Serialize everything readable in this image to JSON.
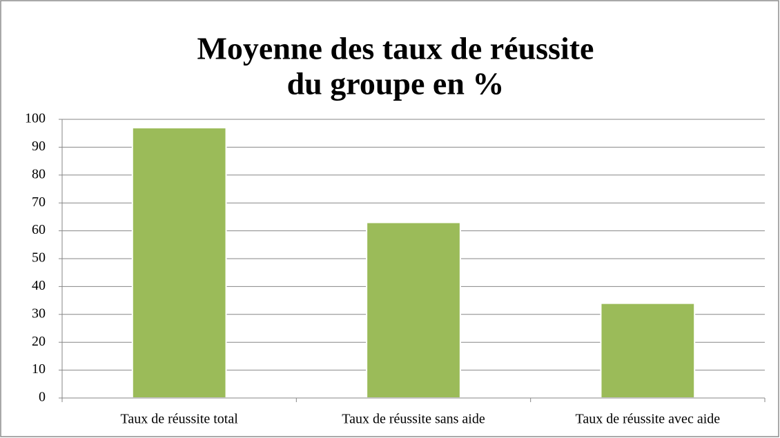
{
  "chart_data": {
    "type": "bar",
    "title": [
      "Moyenne des taux de réussite",
      "du groupe en %"
    ],
    "categories": [
      "Taux de réussite total",
      "Taux de réussite sans aide",
      "Taux de réussite avec aide"
    ],
    "values": [
      97,
      63,
      34
    ],
    "color": "#9bbb59",
    "ylim": [
      0,
      100
    ],
    "yticks": [
      0,
      10,
      20,
      30,
      40,
      50,
      60,
      70,
      80,
      90,
      100
    ],
    "grid": true
  }
}
